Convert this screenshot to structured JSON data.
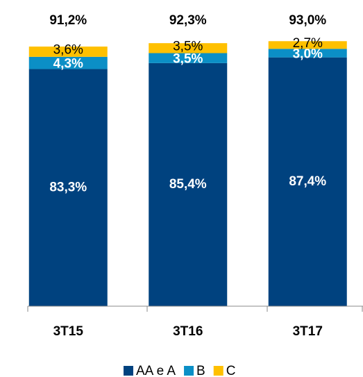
{
  "chart_data": {
    "type": "stacked_bar",
    "categories": [
      "3T15",
      "3T16",
      "3T17"
    ],
    "series": [
      {
        "name": "AA e A",
        "color": "#00427f",
        "values": [
          83.3,
          85.4,
          87.4
        ],
        "value_labels": [
          "83,3%",
          "85,4%",
          "87,4%"
        ]
      },
      {
        "name": "B",
        "color": "#0b8fc6",
        "values": [
          4.3,
          3.5,
          3.0
        ],
        "value_labels": [
          "4,3%",
          "3,5%",
          "3,0%"
        ]
      },
      {
        "name": "C",
        "color": "#ffc000",
        "values": [
          3.6,
          3.5,
          2.7
        ],
        "value_labels": [
          "3,6%",
          "3,5%",
          "2,7%"
        ]
      }
    ],
    "totals": [
      91.2,
      92.3,
      93.0
    ],
    "total_labels": [
      "91,2%",
      "92,3%",
      "93,0%"
    ],
    "ylim": [
      0,
      100
    ],
    "legend": "bottom"
  }
}
